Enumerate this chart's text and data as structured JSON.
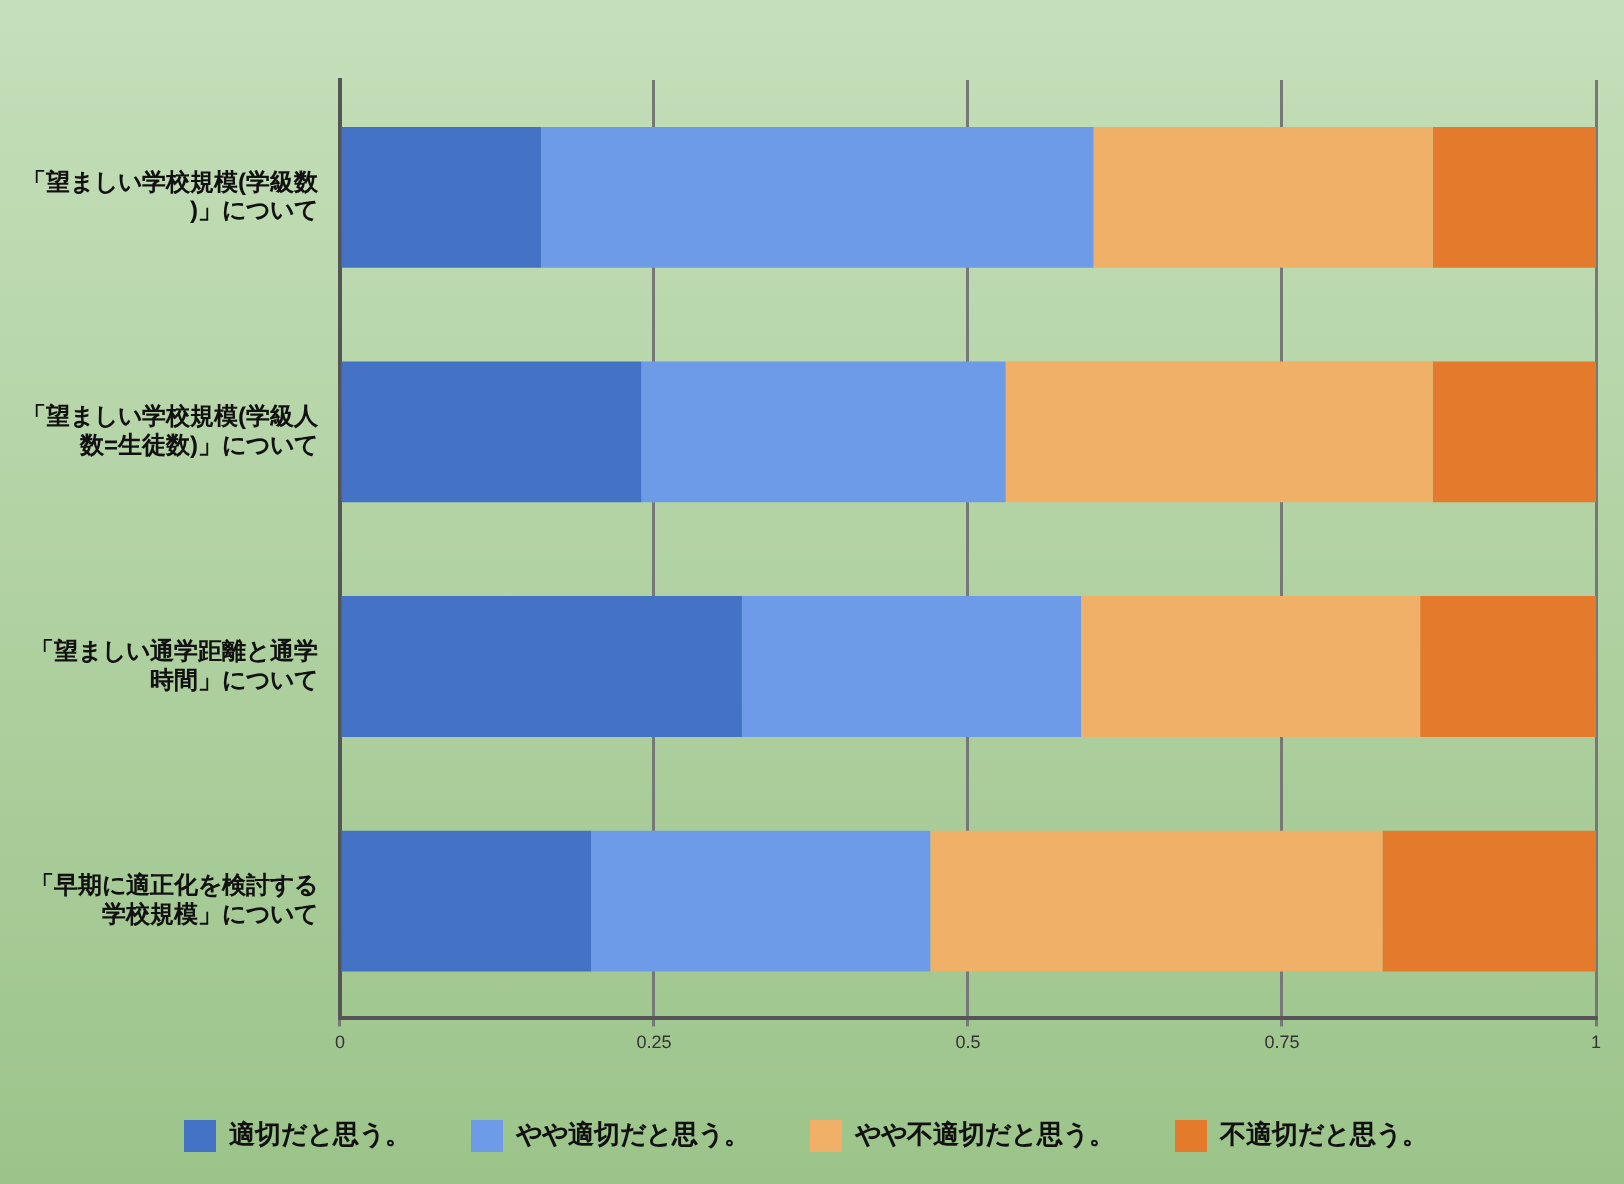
{
  "chart_data": {
    "type": "bar",
    "orientation": "horizontal",
    "stacked": true,
    "categories": [
      "「望ましい学校規模(学級数)」について",
      "「望ましい学校規模(学級人数=生徒数)」について",
      "「望ましい通学距離と通学時間」について",
      "「早期に適正化を検討する学校規模」について"
    ],
    "series": [
      {
        "name": "適切だと思う。",
        "color": "#4472c4",
        "values": [
          0.16,
          0.24,
          0.32,
          0.2
        ]
      },
      {
        "name": "やや適切だと思う。",
        "color": "#6d9be8",
        "values": [
          0.44,
          0.29,
          0.27,
          0.27
        ]
      },
      {
        "name": "やや不適切だと思う。",
        "color": "#f0b067",
        "values": [
          0.27,
          0.34,
          0.27,
          0.36
        ]
      },
      {
        "name": "不適切だと思う。",
        "color": "#e47b2c",
        "values": [
          0.13,
          0.13,
          0.14,
          0.17
        ]
      }
    ],
    "xlim": [
      0,
      1
    ],
    "xticks": [
      0,
      0.25,
      0.5,
      0.75,
      1
    ],
    "grid": "x",
    "legend": "bottom"
  }
}
